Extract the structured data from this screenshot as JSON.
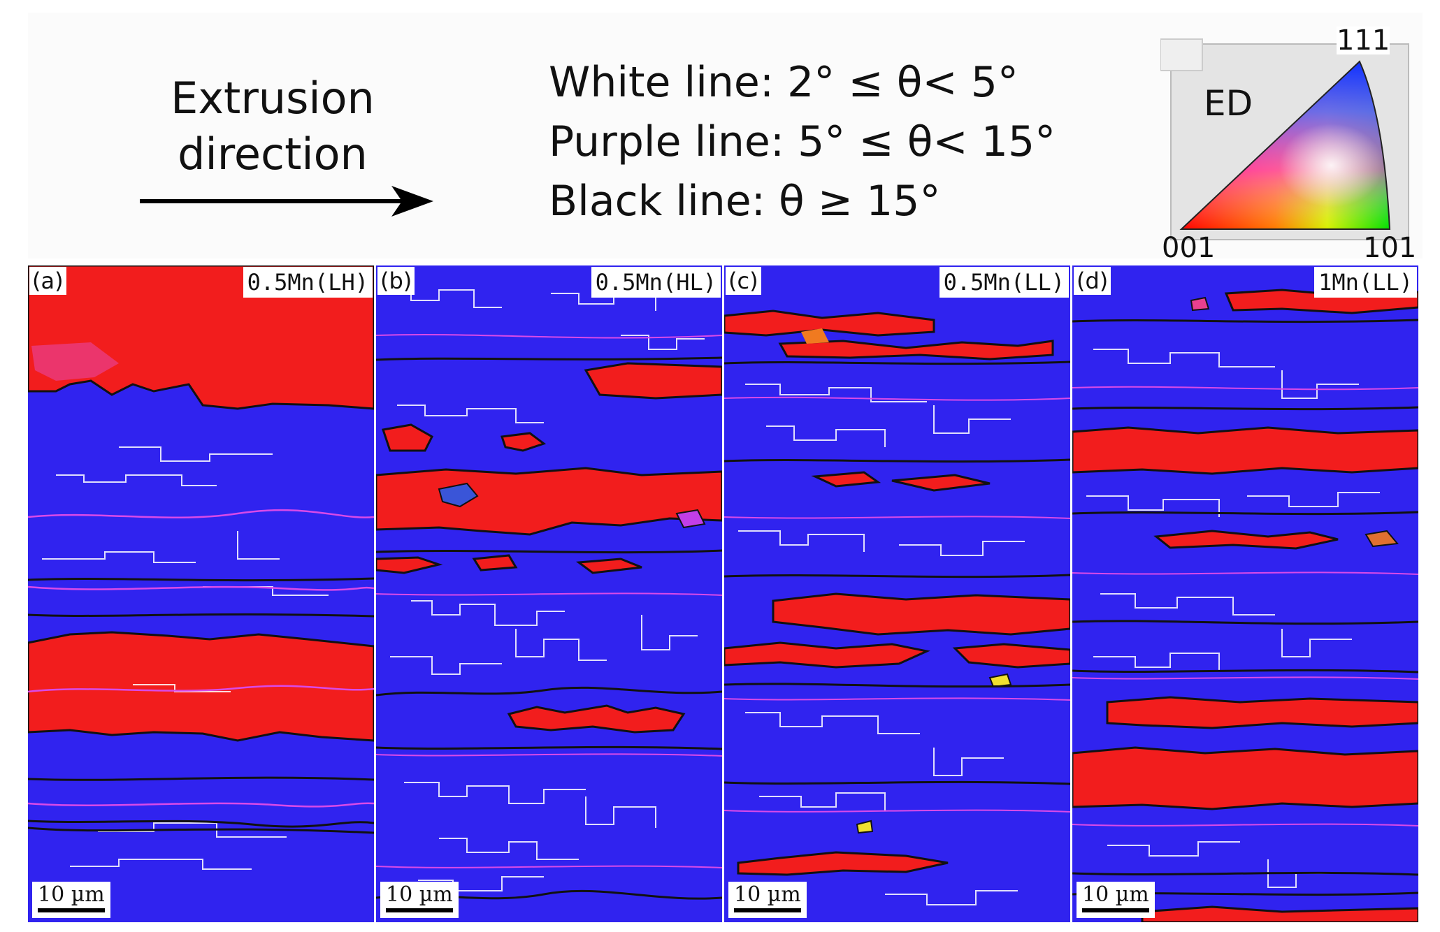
{
  "header": {
    "direction_line1": "Extrusion",
    "direction_line2": "direction",
    "legend": [
      "White line: 2° ≤ θ< 5°",
      "Purple line: 5° ≤ θ< 15°",
      "Black line: θ ≥ 15°"
    ]
  },
  "ipf_key": {
    "ed_label": "ED",
    "corner_top": "111",
    "corner_left": "001",
    "corner_right": "101"
  },
  "panels": [
    {
      "letter": "(a)",
      "label": "0.5Mn(LH)",
      "scale": "10 µm"
    },
    {
      "letter": "(b)",
      "label": "0.5Mn(HL)",
      "scale": "10 µm"
    },
    {
      "letter": "(c)",
      "label": "0.5Mn(LL)",
      "scale": "10 µm"
    },
    {
      "letter": "(d)",
      "label": "1Mn(LL)",
      "scale": "10 µm"
    }
  ],
  "colors": {
    "grain_blue": "#3023ef",
    "grain_red": "#f21d1d",
    "boundary_white": "#ffffff",
    "boundary_purple": "#d94ae8",
    "boundary_black": "#111111"
  }
}
